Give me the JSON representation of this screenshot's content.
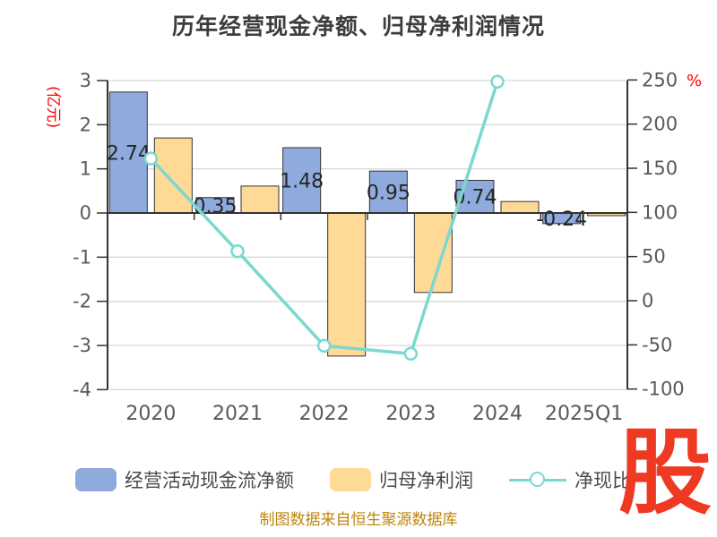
{
  "title": "历年经营现金净额、归母净利润情况",
  "footer": "制图数据来自恒生聚源数据库",
  "logo_text": "股",
  "colors": {
    "bar_ocf": "#8faadc",
    "bar_profit": "#ffd996",
    "ratio_line": "#7bd8d0",
    "bar_border": "#333333",
    "grid": "#d9d9d9",
    "axis": "#333333",
    "tick_text": "#595959",
    "bar_label_text": "#262626",
    "axis_unit_red": "#ff0000",
    "footer_text": "#bd860e",
    "logo_red": "#ee3a22",
    "title_text": "#3d3d3d"
  },
  "chart_data": {
    "type": "bar+line combo",
    "categories": [
      "2020",
      "2021",
      "2022",
      "2023",
      "2024",
      "2025Q1"
    ],
    "series": [
      {
        "name": "经营活动现金流净额",
        "type": "bar",
        "axis": "left",
        "values": [
          2.74,
          0.35,
          1.48,
          0.95,
          0.74,
          -0.24
        ],
        "labels": [
          "2.74",
          "0.35",
          "1.48",
          "0.95",
          "0.74",
          "-0.24"
        ]
      },
      {
        "name": "归母净利润",
        "type": "bar",
        "axis": "left",
        "values": [
          1.7,
          0.61,
          -3.24,
          -1.8,
          0.26,
          -0.06
        ]
      },
      {
        "name": "净现比",
        "type": "line",
        "axis": "right",
        "values": [
          161,
          56,
          -51,
          -60,
          248,
          null
        ]
      }
    ],
    "left_axis": {
      "unit": "(亿元)",
      "min": -4,
      "max": 3,
      "ticks": [
        3,
        2,
        1,
        0,
        -1,
        -2,
        -3,
        -4
      ]
    },
    "right_axis": {
      "unit": "%",
      "min": -100,
      "max": 250,
      "ticks": [
        250,
        200,
        150,
        100,
        50,
        0,
        -50,
        -100
      ]
    },
    "grid": "horizontal gridlines on",
    "legend_position": "bottom"
  },
  "legend": {
    "items": [
      {
        "label": "经营活动现金流净额",
        "swatch": "blue-bar"
      },
      {
        "label": "归母净利润",
        "swatch": "yellow-bar"
      },
      {
        "label": "净现比",
        "swatch": "teal-line-marker"
      }
    ]
  }
}
